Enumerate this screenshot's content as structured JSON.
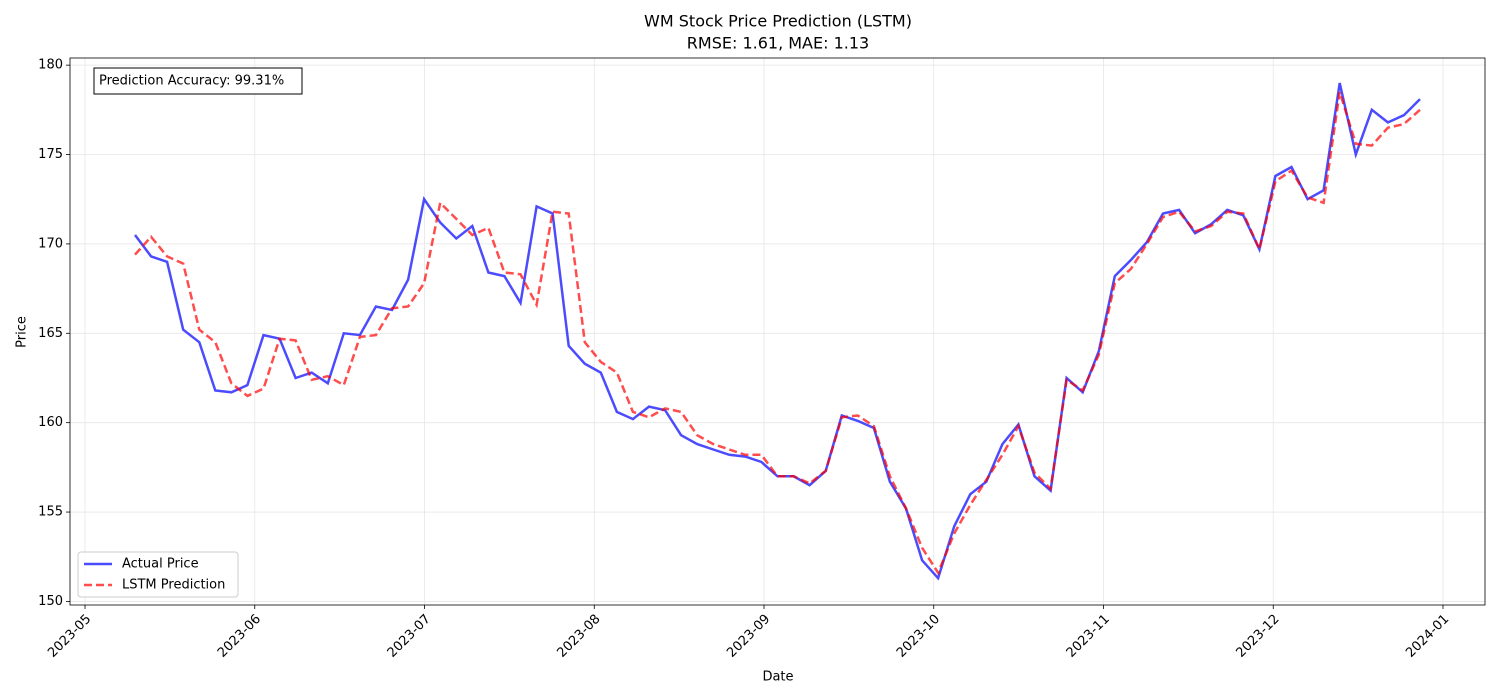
{
  "chart_data": {
    "type": "line",
    "title": "WM Stock Price Prediction (LSTM)",
    "subtitle": "RMSE: 1.61, MAE: 1.13",
    "x_label": "Date",
    "y_label": "Price",
    "annotation": "Prediction Accuracy: 99.31%",
    "xticks": [
      "2023-05",
      "2023-06",
      "2023-07",
      "2023-08",
      "2023-09",
      "2023-10",
      "2023-11",
      "2023-12",
      "2024-01"
    ],
    "ylim": [
      149.8,
      180.4
    ],
    "yticks": [
      150,
      155,
      160,
      165,
      170,
      175,
      180
    ],
    "grid": true,
    "legend": "lower left",
    "series": [
      {
        "name": "Actual Price",
        "color": "#0000ff",
        "dash": false,
        "values": [
          170.5,
          169.3,
          169.0,
          165.2,
          164.5,
          161.8,
          161.7,
          162.1,
          164.9,
          164.7,
          162.5,
          162.8,
          162.2,
          165.0,
          164.9,
          166.5,
          166.3,
          168.0,
          172.5,
          171.2,
          170.3,
          171.0,
          168.4,
          168.2,
          166.7,
          172.1,
          171.7,
          164.3,
          163.3,
          162.8,
          160.6,
          160.2,
          160.9,
          160.7,
          159.3,
          158.8,
          158.5,
          158.2,
          158.1,
          157.8,
          157.0,
          157.0,
          156.5,
          157.3,
          160.4,
          160.1,
          159.7,
          156.7,
          155.2,
          152.3,
          151.3,
          154.2,
          156.0,
          156.7,
          158.8,
          159.9,
          157.0,
          156.2,
          162.5,
          161.7,
          164.0,
          168.2,
          169.1,
          170.1,
          171.7,
          171.9,
          170.6,
          171.1,
          171.9,
          171.6,
          169.7,
          173.8,
          174.3,
          172.5,
          173.0,
          179.0,
          175.0,
          177.5,
          176.8,
          177.2,
          178.1
        ]
      },
      {
        "name": "LSTM Prediction",
        "color": "#ff0000",
        "dash": true,
        "values": [
          169.4,
          170.4,
          169.3,
          168.9,
          165.2,
          164.5,
          162.2,
          161.5,
          161.9,
          164.7,
          164.6,
          162.4,
          162.6,
          162.1,
          164.8,
          164.9,
          166.4,
          166.5,
          167.8,
          172.3,
          171.4,
          170.5,
          170.9,
          168.4,
          168.3,
          166.6,
          171.8,
          171.7,
          164.5,
          163.4,
          162.8,
          160.6,
          160.3,
          160.8,
          160.6,
          159.3,
          158.8,
          158.5,
          158.2,
          158.2,
          157.0,
          157.0,
          156.6,
          157.3,
          160.3,
          160.4,
          159.8,
          157.0,
          155.2,
          153.0,
          151.6,
          153.8,
          155.4,
          156.8,
          158.2,
          159.8,
          157.2,
          156.3,
          162.4,
          161.8,
          163.8,
          167.8,
          168.6,
          170.0,
          171.5,
          171.8,
          170.7,
          171.0,
          171.8,
          171.7,
          169.7,
          173.5,
          174.1,
          172.6,
          172.3,
          178.5,
          175.6,
          175.5,
          176.5,
          176.7,
          177.5
        ]
      }
    ]
  }
}
